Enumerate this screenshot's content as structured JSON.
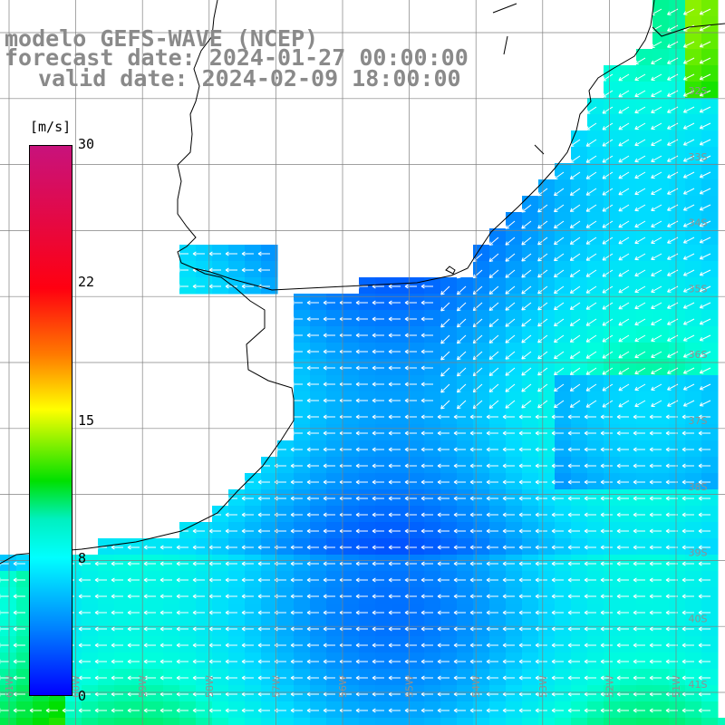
{
  "title": {
    "line1": "modelo GEFS-WAVE (NCEP)",
    "line2": "forecast date: 2024-01-27 00:00:00",
    "line3": "valid date: 2024-02-09 18:00:00"
  },
  "colorbar": {
    "unit": "[m/s]",
    "ticks": [
      {
        "label": "30",
        "value": 30
      },
      {
        "label": "22",
        "value": 22
      },
      {
        "label": "15",
        "value": 15
      },
      {
        "label": "8",
        "value": 8
      },
      {
        "label": "0",
        "value": 0
      }
    ],
    "min": 0,
    "max": 30
  },
  "map": {
    "lat_labels": [
      "32S",
      "33S",
      "34S",
      "35S",
      "36S",
      "37S",
      "38S",
      "39S",
      "40S",
      "41S"
    ],
    "lon_labels": [
      "61W",
      "60W",
      "59W",
      "58W",
      "57W",
      "56W",
      "55W",
      "54W",
      "53W",
      "52W",
      "51W"
    ],
    "grid": true,
    "colors": {
      "land": "#ffffff",
      "coast": "#000000",
      "grid": "#808080",
      "arrow": "#ffffff",
      "label": "#909090"
    }
  }
}
